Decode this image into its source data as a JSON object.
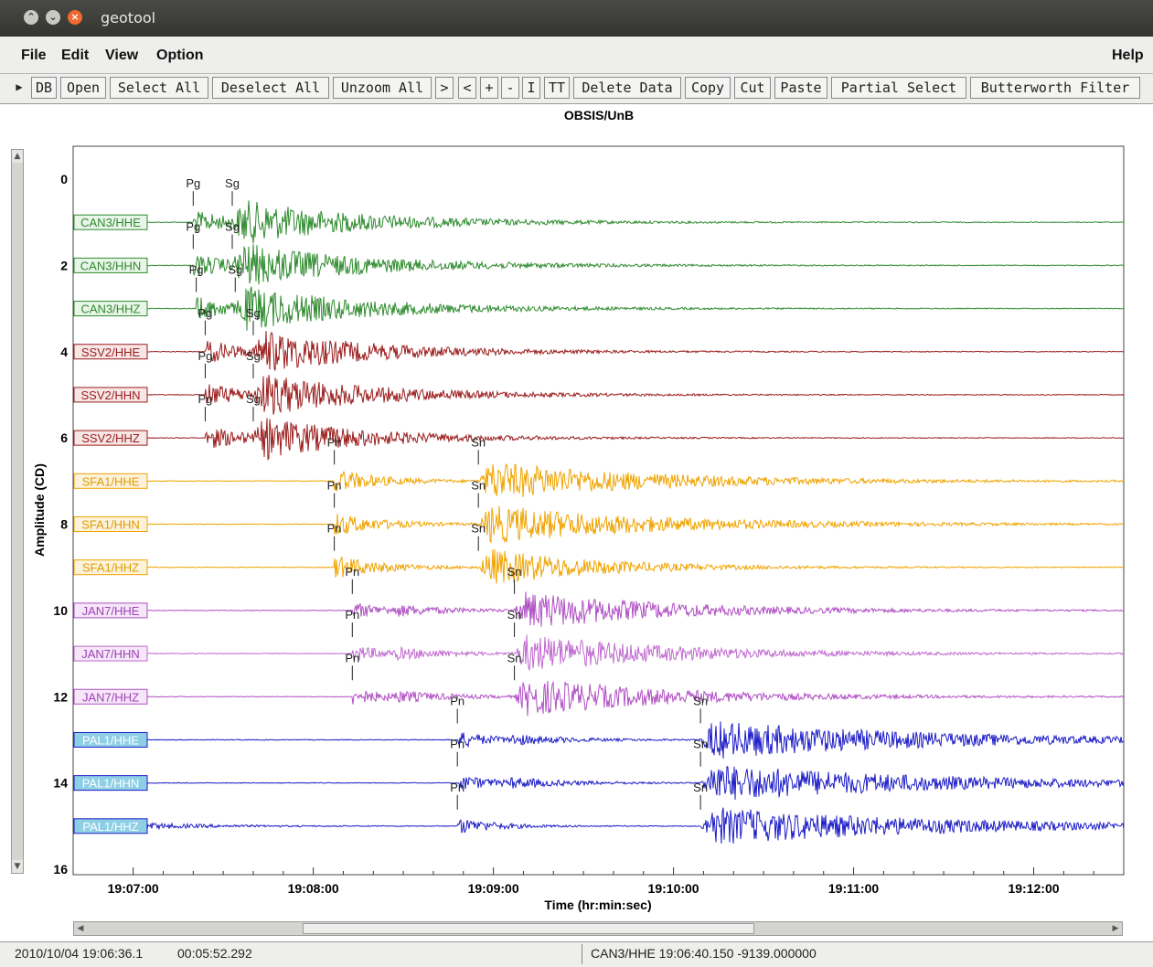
{
  "window": {
    "title": "geotool"
  },
  "menubar": {
    "items": [
      "File",
      "Edit",
      "View",
      "Option"
    ],
    "help": "Help"
  },
  "toolbar": {
    "buttons": [
      "DB",
      "Open",
      "Select All",
      "Deselect All",
      "Unzoom All",
      ">",
      "<",
      "+",
      "-",
      "I",
      "TT",
      "Delete Data",
      "Copy",
      "Cut",
      "Paste",
      "Partial Select",
      "Butterworth Filter"
    ]
  },
  "plot": {
    "title": "OBSIS/UnB",
    "ylabel": "Amplitude (CD)",
    "xlabel": "Time (hr:min:sec)",
    "yticks": [
      "0",
      "2",
      "4",
      "6",
      "8",
      "10",
      "12",
      "14",
      "16"
    ],
    "xticks": [
      "19:07:00",
      "19:08:00",
      "19:09:00",
      "19:10:00",
      "19:11:00",
      "19:12:00"
    ]
  },
  "chart_data": {
    "type": "line",
    "title": "OBSIS/UnB",
    "xlabel": "Time (hr:min:sec)",
    "ylabel": "Amplitude (CD)",
    "xlim": [
      "19:06:40",
      "19:12:30"
    ],
    "ylim": [
      0,
      16
    ],
    "grid": false,
    "traces": [
      {
        "name": "CAN3/HHE",
        "color": "#2e8b2e",
        "label_bg": "#e9f5e9",
        "label_fg": "#2e8b2e",
        "P": {
          "phase": "Pg",
          "time": "19:07:20"
        },
        "S": {
          "phase": "Sg",
          "time": "19:07:33"
        },
        "amp": 1.0,
        "decay": 55,
        "onset": "P"
      },
      {
        "name": "CAN3/HHN",
        "color": "#2e8b2e",
        "label_bg": "#e9f5e9",
        "label_fg": "#2e8b2e",
        "P": {
          "phase": "Pg",
          "time": "19:07:20"
        },
        "S": {
          "phase": "Sg",
          "time": "19:07:33"
        },
        "amp": 1.0,
        "decay": 55,
        "onset": "P"
      },
      {
        "name": "CAN3/HHZ",
        "color": "#2e8b2e",
        "label_bg": "#e9f5e9",
        "label_fg": "#2e8b2e",
        "P": {
          "phase": "Pg",
          "time": "19:07:21"
        },
        "S": {
          "phase": "Sg",
          "time": "19:07:34"
        },
        "amp": 1.0,
        "decay": 55,
        "onset": "P"
      },
      {
        "name": "SSV2/HHE",
        "color": "#9b1c1c",
        "label_bg": "#f6e6e6",
        "label_fg": "#9b1c1c",
        "P": {
          "phase": "Pg",
          "time": "19:07:24"
        },
        "S": {
          "phase": "Sg",
          "time": "19:07:40"
        },
        "amp": 1.0,
        "decay": 50,
        "onset": "P"
      },
      {
        "name": "SSV2/HHN",
        "color": "#9b1c1c",
        "label_bg": "#f6e6e6",
        "label_fg": "#9b1c1c",
        "P": {
          "phase": "Pg",
          "time": "19:07:24"
        },
        "S": {
          "phase": "Sg",
          "time": "19:07:40"
        },
        "amp": 1.0,
        "decay": 50,
        "onset": "P"
      },
      {
        "name": "SSV2/HHZ",
        "color": "#9b1c1c",
        "label_bg": "#f6e6e6",
        "label_fg": "#9b1c1c",
        "P": {
          "phase": "Pg",
          "time": "19:07:24"
        },
        "S": {
          "phase": "Sg",
          "time": "19:07:40"
        },
        "amp": 1.0,
        "decay": 45,
        "onset": "P"
      },
      {
        "name": "SFA1/HHE",
        "color": "#f0a300",
        "label_bg": "#fdf3dc",
        "label_fg": "#e09a00",
        "P": {
          "phase": "Pn",
          "time": "19:08:07"
        },
        "S": {
          "phase": "Sn",
          "time": "19:08:55"
        },
        "amp": 1.0,
        "decay": 70,
        "onset": "P"
      },
      {
        "name": "SFA1/HHN",
        "color": "#f0a300",
        "label_bg": "#fdf3dc",
        "label_fg": "#e09a00",
        "P": {
          "phase": "Pn",
          "time": "19:08:07"
        },
        "S": {
          "phase": "Sn",
          "time": "19:08:55"
        },
        "amp": 1.0,
        "decay": 70,
        "onset": "P"
      },
      {
        "name": "SFA1/HHZ",
        "color": "#f0a300",
        "label_bg": "#fdf3dc",
        "label_fg": "#e09a00",
        "P": {
          "phase": "Pn",
          "time": "19:08:07"
        },
        "S": {
          "phase": "Sn",
          "time": "19:08:55"
        },
        "amp": 1.0,
        "decay": 45,
        "onset": "P"
      },
      {
        "name": "JAN7/HHE",
        "color": "#b04fc4",
        "label_bg": "#f5e6f8",
        "label_fg": "#a040b8",
        "P": {
          "phase": "Pn",
          "time": "19:08:13"
        },
        "S": {
          "phase": "Sn",
          "time": "19:09:07"
        },
        "amp": 1.0,
        "decay": 60,
        "onset": "19:08:27"
      },
      {
        "name": "JAN7/HHN",
        "color": "#c068d0",
        "label_bg": "#f5e6f8",
        "label_fg": "#a040b8",
        "P": {
          "phase": "Pn",
          "time": "19:08:13"
        },
        "S": {
          "phase": "Sn",
          "time": "19:09:07"
        },
        "amp": 1.0,
        "decay": 60,
        "onset": "19:08:27"
      },
      {
        "name": "JAN7/HHZ",
        "color": "#b04fc4",
        "label_bg": "#f5e6f8",
        "label_fg": "#a040b8",
        "P": {
          "phase": "Pn",
          "time": "19:08:13"
        },
        "S": {
          "phase": "Sn",
          "time": "19:09:07"
        },
        "amp": 1.0,
        "decay": 60,
        "onset": "19:08:27"
      },
      {
        "name": "PAL1/HHE",
        "color": "#1c1cc8",
        "label_bg": "#8ecfe6",
        "label_fg": "#ffffff",
        "P": {
          "phase": "Pn",
          "time": "19:08:48"
        },
        "S": {
          "phase": "Sn",
          "time": "19:10:09"
        },
        "amp": 1.0,
        "decay": 90,
        "onset": "19:09:05"
      },
      {
        "name": "PAL1/HHN",
        "color": "#1c1cc8",
        "label_bg": "#8ecfe6",
        "label_fg": "#ffffff",
        "P": {
          "phase": "Pn",
          "time": "19:08:48"
        },
        "S": {
          "phase": "Sn",
          "time": "19:10:09"
        },
        "amp": 1.0,
        "decay": 90,
        "onset": "19:09:05"
      },
      {
        "name": "PAL1/HHZ",
        "color": "#1c1cc8",
        "label_bg": "#8ecfe6",
        "label_fg": "#ffffff",
        "P": {
          "phase": "Pn",
          "time": "19:08:48"
        },
        "S": {
          "phase": "Sn",
          "time": "19:10:09"
        },
        "amp": 1.0,
        "decay": 90,
        "onset": "19:07:00"
      }
    ]
  },
  "status": {
    "left": "2010/10/04 19:06:36.1",
    "duration": "00:05:52.292",
    "right": "CAN3/HHE  19:06:40.150  -9139.000000"
  }
}
